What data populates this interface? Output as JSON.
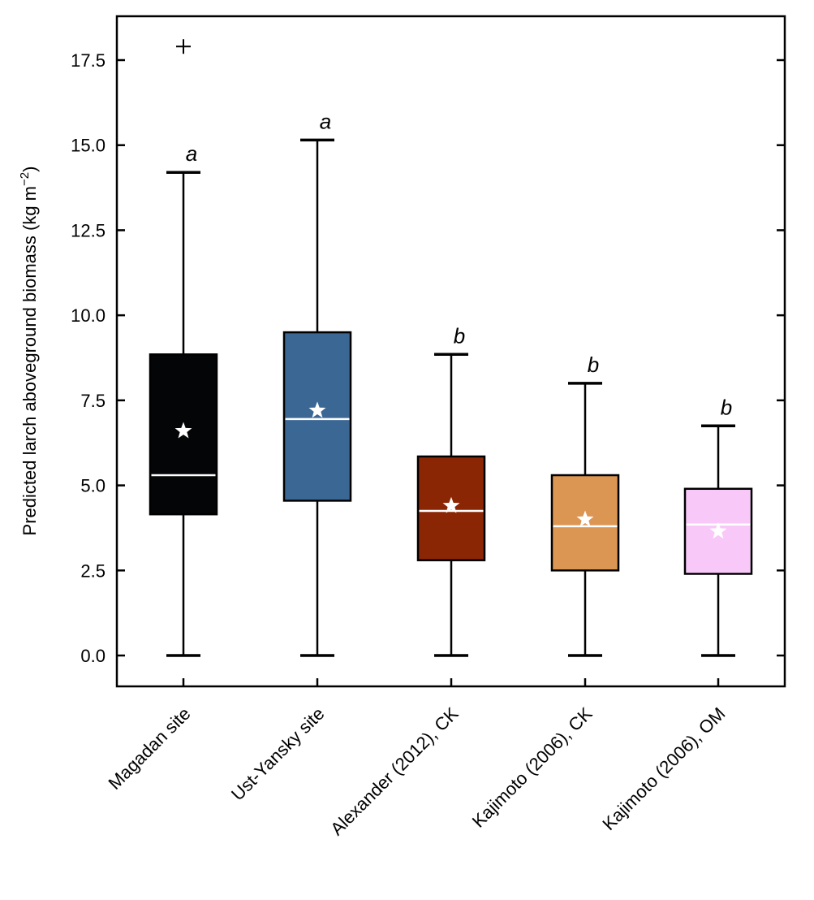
{
  "chart_data": {
    "type": "box",
    "title": "",
    "xlabel": "",
    "ylabel": "Predicted larch aboveground biomass (kg m⁻²)",
    "ylabel_parts": {
      "main": "Predicted larch aboveground biomass (kg m",
      "sup": "−2",
      "end": ")"
    },
    "ylim": [
      -0.9,
      18.8
    ],
    "yticks": [
      0.0,
      2.5,
      5.0,
      7.5,
      10.0,
      12.5,
      15.0,
      17.5
    ],
    "ytick_labels": [
      "0.0",
      "2.5",
      "5.0",
      "7.5",
      "10.0",
      "12.5",
      "15.0",
      "17.5"
    ],
    "categories": [
      "Magadan site",
      "Ust-Yansky site",
      "Alexander (2012), CK",
      "Kajimoto (2006), CK",
      "Kajimoto (2006), OM"
    ],
    "boxes": [
      {
        "whisker_low": 0.0,
        "q1": 4.15,
        "median": 5.3,
        "q3": 8.85,
        "whisker_high": 14.2,
        "mean": 6.6,
        "outliers": [
          17.9
        ],
        "color": "#040506",
        "letter": "a"
      },
      {
        "whisker_low": 0.0,
        "q1": 4.55,
        "median": 6.95,
        "q3": 9.5,
        "whisker_high": 15.15,
        "mean": 7.2,
        "outliers": [],
        "color": "#3b6795",
        "letter": "a"
      },
      {
        "whisker_low": 0.0,
        "q1": 2.8,
        "median": 4.25,
        "q3": 5.85,
        "whisker_high": 8.85,
        "mean": 4.4,
        "outliers": [],
        "color": "#8b2604",
        "letter": "b"
      },
      {
        "whisker_low": 0.0,
        "q1": 2.5,
        "median": 3.8,
        "q3": 5.3,
        "whisker_high": 8.0,
        "mean": 4.0,
        "outliers": [],
        "color": "#dc9654",
        "letter": "b"
      },
      {
        "whisker_low": 0.0,
        "q1": 2.4,
        "median": 3.85,
        "q3": 4.9,
        "whisker_high": 6.75,
        "mean": 3.65,
        "outliers": [],
        "color": "#f8c9f8",
        "letter": "b"
      }
    ],
    "grid": false,
    "legend": "none"
  }
}
